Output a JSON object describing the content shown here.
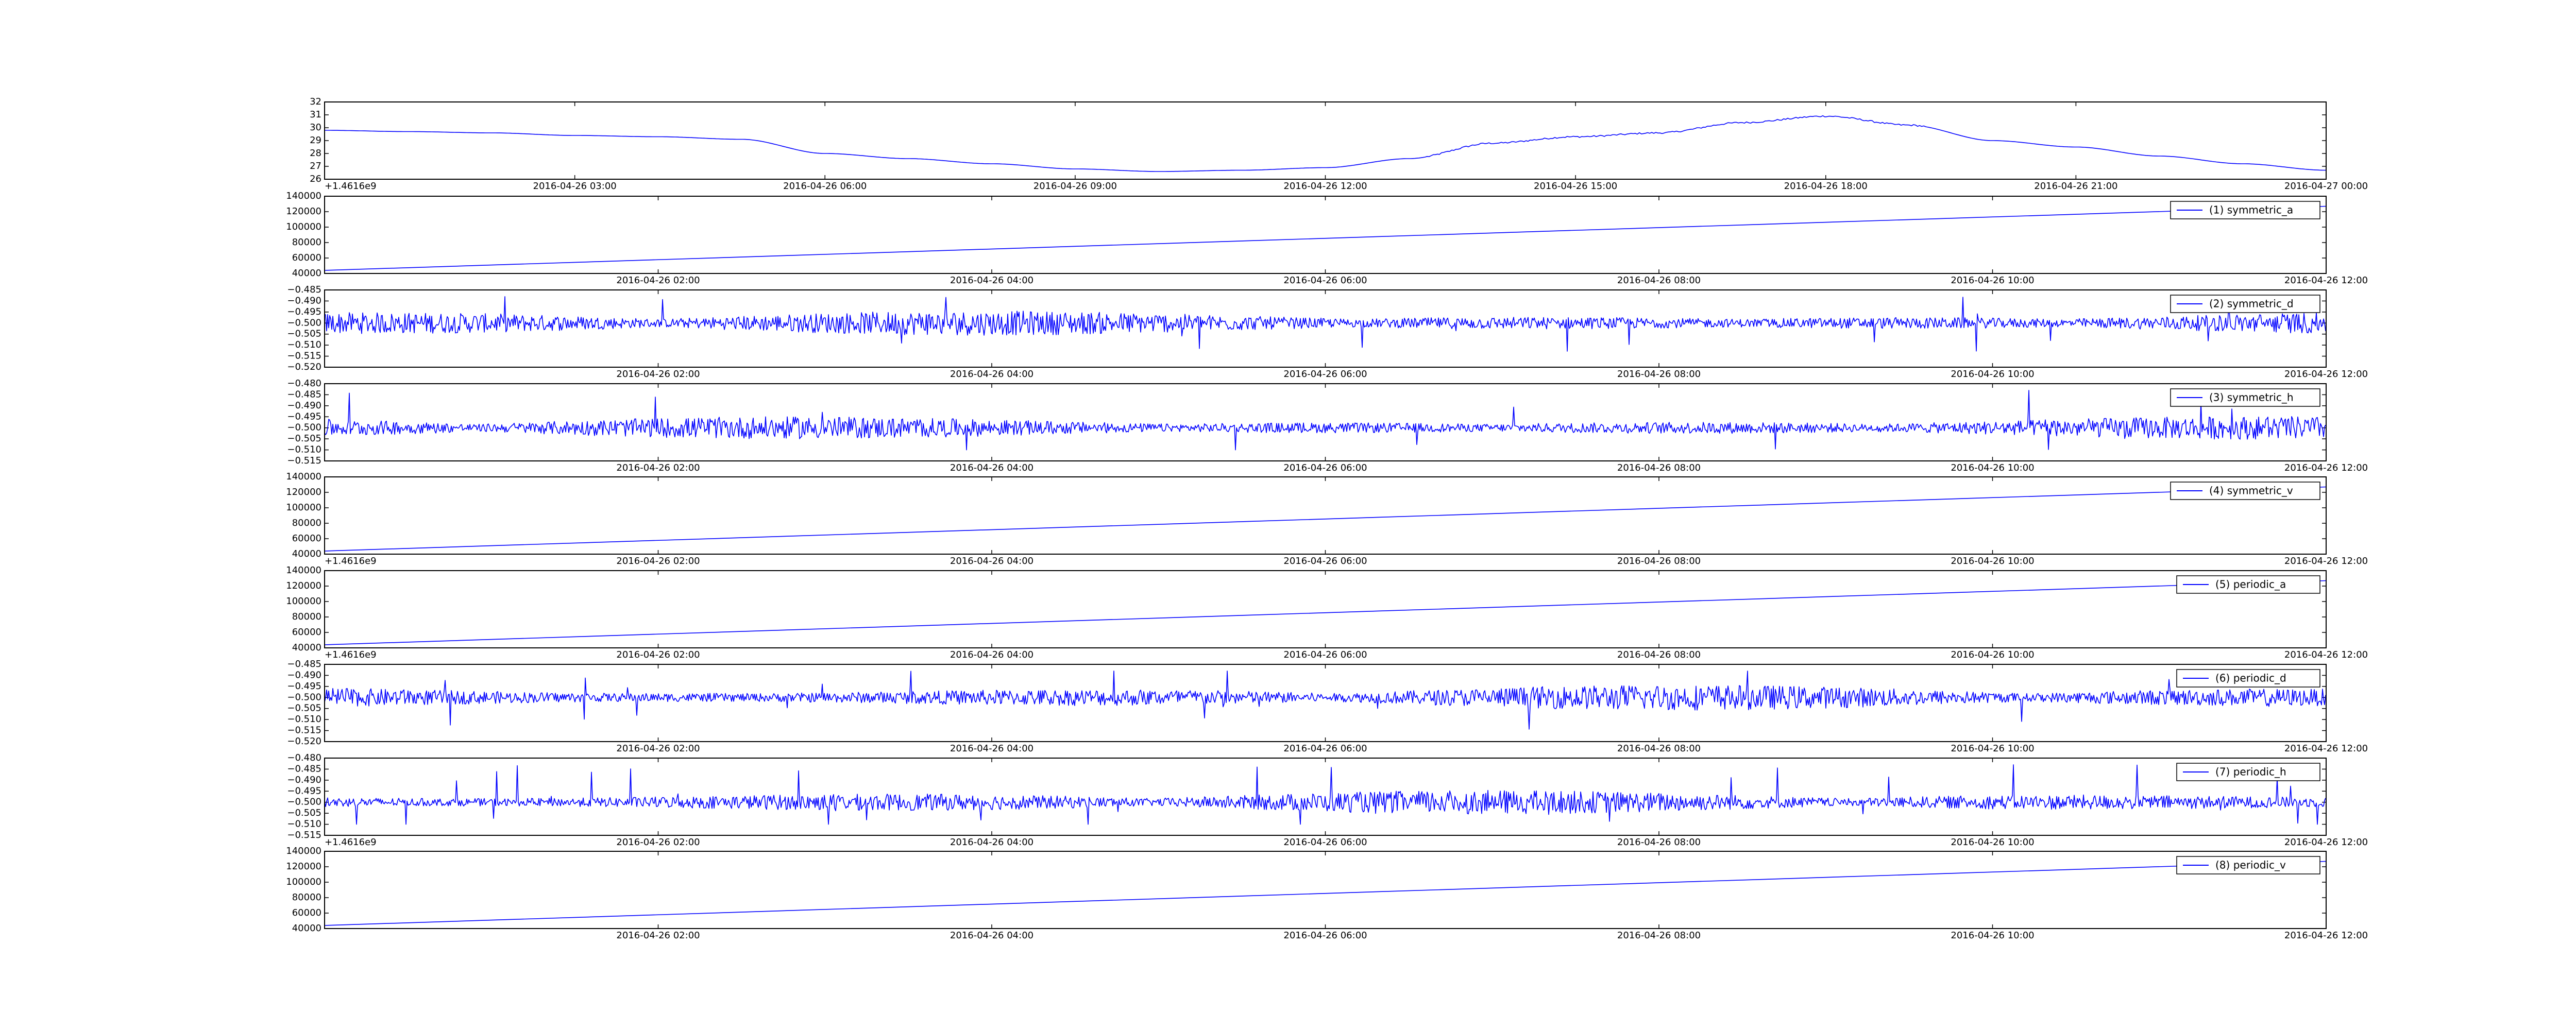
{
  "chart_data": [
    {
      "type": "line",
      "title": "",
      "ylim": [
        26,
        32
      ],
      "yticks": [
        "26",
        "27",
        "28",
        "29",
        "30",
        "31",
        "32"
      ],
      "xtick_labels": [
        "2016-04-26 03:00",
        "2016-04-26 06:00",
        "2016-04-26 09:00",
        "2016-04-26 12:00",
        "2016-04-26 15:00",
        "2016-04-26 18:00",
        "2016-04-26 21:00",
        "2016-04-27 00:00"
      ],
      "offset_label": "+1.4616e9",
      "grid": false,
      "series": [
        {
          "x": [
            "2016-04-26 00:00",
            "2016-04-26 01:00",
            "2016-04-26 02:00",
            "2016-04-26 03:00",
            "2016-04-26 04:00",
            "2016-04-26 05:00",
            "2016-04-26 06:00",
            "2016-04-26 07:00",
            "2016-04-26 08:00",
            "2016-04-26 09:00",
            "2016-04-26 10:00",
            "2016-04-26 11:00",
            "2016-04-26 12:00",
            "2016-04-26 13:00",
            "2016-04-26 14:00",
            "2016-04-26 15:00",
            "2016-04-26 16:00",
            "2016-04-26 17:00",
            "2016-04-26 18:00",
            "2016-04-26 19:00",
            "2016-04-26 20:00",
            "2016-04-26 21:00",
            "2016-04-26 22:00",
            "2016-04-26 23:00",
            "2016-04-27 00:00"
          ],
          "values": [
            29.8,
            29.7,
            29.6,
            29.4,
            29.3,
            29.1,
            28.0,
            27.6,
            27.2,
            26.8,
            26.6,
            26.7,
            26.9,
            27.6,
            28.8,
            29.3,
            29.6,
            30.4,
            30.9,
            30.2,
            29.0,
            28.5,
            27.8,
            27.2,
            26.7
          ]
        }
      ]
    },
    {
      "type": "line",
      "ylim": [
        40000,
        140000
      ],
      "yticks": [
        "40000",
        "60000",
        "80000",
        "100000",
        "120000",
        "140000"
      ],
      "xtick_labels": [
        "2016-04-26 02:00",
        "2016-04-26 04:00",
        "2016-04-26 06:00",
        "2016-04-26 08:00",
        "2016-04-26 10:00",
        "2016-04-26 12:00"
      ],
      "legend_position": "top-right",
      "series": [
        {
          "name": "(1) symmetric_a",
          "x": [
            "2016-04-26 00:00",
            "2016-04-26 12:00"
          ],
          "values": [
            44000,
            127000
          ]
        }
      ]
    },
    {
      "type": "line",
      "ylim": [
        -0.52,
        -0.485
      ],
      "yticks": [
        "−0.520",
        "−0.515",
        "−0.510",
        "−0.505",
        "−0.500",
        "−0.495",
        "−0.490",
        "−0.485"
      ],
      "xtick_labels": [
        "2016-04-26 02:00",
        "2016-04-26 04:00",
        "2016-04-26 06:00",
        "2016-04-26 08:00",
        "2016-04-26 10:00",
        "2016-04-26 12:00"
      ],
      "legend_position": "top-right",
      "series": [
        {
          "name": "(2) symmetric_d",
          "baseline": -0.5,
          "min": -0.517,
          "max": -0.488
        }
      ]
    },
    {
      "type": "line",
      "ylim": [
        -0.515,
        -0.48
      ],
      "yticks": [
        "−0.515",
        "−0.510",
        "−0.505",
        "−0.500",
        "−0.495",
        "−0.490",
        "−0.485",
        "−0.480"
      ],
      "xtick_labels": [
        "2016-04-26 02:00",
        "2016-04-26 04:00",
        "2016-04-26 06:00",
        "2016-04-26 08:00",
        "2016-04-26 10:00",
        "2016-04-26 12:00"
      ],
      "legend_position": "top-right",
      "series": [
        {
          "name": "(3) symmetric_h",
          "baseline": -0.5,
          "min": -0.51,
          "max": -0.483
        }
      ]
    },
    {
      "type": "line",
      "ylim": [
        40000,
        140000
      ],
      "yticks": [
        "40000",
        "60000",
        "80000",
        "100000",
        "120000",
        "140000"
      ],
      "xtick_labels": [
        "2016-04-26 02:00",
        "2016-04-26 04:00",
        "2016-04-26 06:00",
        "2016-04-26 08:00",
        "2016-04-26 10:00",
        "2016-04-26 12:00"
      ],
      "offset_label": "+1.4616e9",
      "legend_position": "top-right",
      "series": [
        {
          "name": "(4) symmetric_v",
          "x": [
            "2016-04-26 00:00",
            "2016-04-26 12:00"
          ],
          "values": [
            44000,
            127000
          ]
        }
      ]
    },
    {
      "type": "line",
      "ylim": [
        40000,
        140000
      ],
      "yticks": [
        "40000",
        "60000",
        "80000",
        "100000",
        "120000",
        "140000"
      ],
      "xtick_labels": [
        "2016-04-26 02:00",
        "2016-04-26 04:00",
        "2016-04-26 06:00",
        "2016-04-26 08:00",
        "2016-04-26 10:00",
        "2016-04-26 12:00"
      ],
      "offset_label": "+1.4616e9",
      "legend_position": "top-right",
      "series": [
        {
          "name": "(5) periodic_a",
          "x": [
            "2016-04-26 00:00",
            "2016-04-26 12:00"
          ],
          "values": [
            44000,
            127000
          ]
        }
      ]
    },
    {
      "type": "line",
      "ylim": [
        -0.52,
        -0.485
      ],
      "yticks": [
        "−0.520",
        "−0.515",
        "−0.510",
        "−0.505",
        "−0.500",
        "−0.495",
        "−0.490",
        "−0.485"
      ],
      "xtick_labels": [
        "2016-04-26 02:00",
        "2016-04-26 04:00",
        "2016-04-26 06:00",
        "2016-04-26 08:00",
        "2016-04-26 10:00",
        "2016-04-26 12:00"
      ],
      "legend_position": "top-right",
      "series": [
        {
          "name": "(6) periodic_d",
          "baseline": -0.5,
          "min": -0.517,
          "max": -0.488
        }
      ]
    },
    {
      "type": "line",
      "ylim": [
        -0.515,
        -0.48
      ],
      "yticks": [
        "−0.515",
        "−0.510",
        "−0.505",
        "−0.500",
        "−0.495",
        "−0.490",
        "−0.485",
        "−0.480"
      ],
      "xtick_labels": [
        "2016-04-26 02:00",
        "2016-04-26 04:00",
        "2016-04-26 06:00",
        "2016-04-26 08:00",
        "2016-04-26 10:00",
        "2016-04-26 12:00"
      ],
      "offset_label": "+1.4616e9",
      "legend_position": "top-right",
      "series": [
        {
          "name": "(7) periodic_h",
          "baseline": -0.5,
          "min": -0.51,
          "max": -0.483
        }
      ]
    },
    {
      "type": "line",
      "ylim": [
        40000,
        140000
      ],
      "yticks": [
        "40000",
        "60000",
        "80000",
        "100000",
        "120000",
        "140000"
      ],
      "xtick_labels": [
        "2016-04-26 02:00",
        "2016-04-26 04:00",
        "2016-04-26 06:00",
        "2016-04-26 08:00",
        "2016-04-26 10:00",
        "2016-04-26 12:00"
      ],
      "legend_position": "top-right",
      "series": [
        {
          "name": "(8) periodic_v",
          "x": [
            "2016-04-26 00:00",
            "2016-04-26 12:00"
          ],
          "values": [
            44000,
            127000
          ]
        }
      ]
    }
  ],
  "colors": {
    "series": "#0000ff",
    "axes": "#000000",
    "background": "#ffffff"
  }
}
